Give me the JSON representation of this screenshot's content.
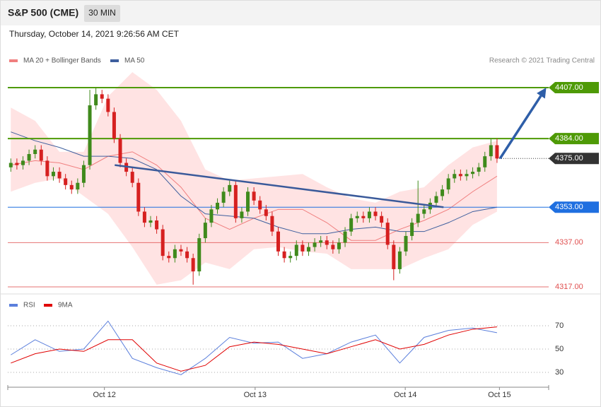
{
  "header": {
    "symbol": "S&P 500 (CME)",
    "interval": "30 MIN",
    "date": "Thursday, October 14, 2021 9:26:56 AM CET"
  },
  "chart_data": [
    {
      "type": "candlestick",
      "credit": "Research © 2021 Trading Central",
      "up_color": "#3f8a1c",
      "down_color": "#d62020",
      "xlim": [
        -0.5,
        88.5
      ],
      "ylim": [
        4315,
        4417
      ],
      "x": [
        0,
        1,
        2,
        3,
        4,
        5,
        6,
        7,
        8,
        9,
        10,
        11,
        12,
        13,
        14,
        15,
        16,
        17,
        18,
        19,
        20,
        21,
        22,
        23,
        24,
        25,
        26,
        27,
        28,
        29,
        30,
        31,
        32,
        33,
        34,
        35,
        36,
        37,
        38,
        39,
        40,
        41,
        42,
        43,
        44,
        45,
        46,
        47,
        48,
        49,
        50,
        51,
        52,
        53,
        54,
        55,
        56,
        57,
        58,
        59,
        60,
        61,
        62,
        63,
        64,
        65,
        66,
        67,
        68,
        69,
        70,
        71,
        72,
        73,
        74,
        75,
        76,
        77,
        78,
        79,
        80
      ],
      "open": [
        4371,
        4373,
        4372,
        4374,
        4377,
        4379,
        4374,
        4367,
        4369,
        4366,
        4363,
        4361,
        4364,
        4372,
        4399,
        4404,
        4402,
        4396,
        4384,
        4373,
        4369,
        4364,
        4351,
        4346,
        4347,
        4343,
        4331,
        4330,
        4334,
        4333,
        4330,
        4324,
        4339,
        4346,
        4352,
        4355,
        4360,
        4363,
        4348,
        4351,
        4360,
        4356,
        4352,
        4349,
        4342,
        4333,
        4330,
        4331,
        4336,
        4333,
        4335,
        4337,
        4338,
        4336,
        4334,
        4337,
        4342,
        4348,
        4349,
        4348,
        4351,
        4349,
        4346,
        4336,
        4325,
        4333,
        4340,
        4346,
        4350,
        4352,
        4355,
        4358,
        4361,
        4366,
        4368,
        4367,
        4368,
        4369,
        4371,
        4376,
        4381
      ],
      "high": [
        4375,
        4375,
        4376,
        4379,
        4381,
        4381,
        4376,
        4371,
        4371,
        4368,
        4365,
        4366,
        4374,
        4406,
        4407,
        4406,
        4404,
        4398,
        4386,
        4375,
        4371,
        4366,
        4353,
        4349,
        4349,
        4345,
        4333,
        4336,
        4336,
        4335,
        4332,
        4341,
        4348,
        4354,
        4357,
        4362,
        4365,
        4365,
        4353,
        4362,
        4362,
        4358,
        4354,
        4351,
        4344,
        4335,
        4333,
        4338,
        4338,
        4337,
        4339,
        4340,
        4340,
        4338,
        4339,
        4344,
        4350,
        4351,
        4351,
        4353,
        4353,
        4351,
        4348,
        4338,
        4335,
        4342,
        4348,
        4365,
        4354,
        4357,
        4360,
        4363,
        4368,
        4370,
        4370,
        4370,
        4371,
        4373,
        4378,
        4384,
        4384
      ],
      "low": [
        4369,
        4370,
        4370,
        4372,
        4375,
        4372,
        4365,
        4365,
        4364,
        4361,
        4359,
        4359,
        4362,
        4370,
        4397,
        4400,
        4394,
        4382,
        4371,
        4367,
        4362,
        4349,
        4344,
        4344,
        4341,
        4329,
        4328,
        4328,
        4331,
        4328,
        4318,
        4322,
        4337,
        4344,
        4350,
        4353,
        4358,
        4346,
        4346,
        4349,
        4354,
        4350,
        4347,
        4340,
        4331,
        4328,
        4328,
        4329,
        4331,
        4331,
        4333,
        4335,
        4334,
        4332,
        4332,
        4335,
        4340,
        4346,
        4346,
        4346,
        4347,
        4344,
        4334,
        4320,
        4323,
        4331,
        4338,
        4344,
        4348,
        4350,
        4353,
        4356,
        4359,
        4364,
        4365,
        4365,
        4366,
        4367,
        4369,
        4374,
        4373
      ],
      "close": [
        4373,
        4372,
        4374,
        4377,
        4379,
        4374,
        4367,
        4369,
        4366,
        4363,
        4361,
        4364,
        4372,
        4399,
        4404,
        4402,
        4396,
        4384,
        4373,
        4369,
        4364,
        4351,
        4346,
        4347,
        4343,
        4331,
        4330,
        4334,
        4333,
        4330,
        4324,
        4339,
        4346,
        4352,
        4355,
        4360,
        4363,
        4348,
        4351,
        4360,
        4356,
        4352,
        4349,
        4342,
        4333,
        4330,
        4331,
        4336,
        4333,
        4335,
        4337,
        4338,
        4336,
        4334,
        4337,
        4342,
        4348,
        4349,
        4348,
        4351,
        4349,
        4346,
        4336,
        4325,
        4333,
        4340,
        4346,
        4350,
        4352,
        4355,
        4358,
        4361,
        4366,
        4368,
        4367,
        4368,
        4369,
        4371,
        4376,
        4381,
        4375
      ],
      "overlay_x": [
        0,
        4,
        8,
        12,
        16,
        20,
        24,
        28,
        32,
        36,
        40,
        44,
        48,
        52,
        56,
        60,
        64,
        68,
        72,
        76,
        80
      ],
      "overlays": [
        {
          "name": "MA 20 + Bollinger Bands",
          "color": "#f07f7f",
          "band_color": "#ffd9d9",
          "values": [
            4372,
            4374,
            4373,
            4370,
            4376,
            4378,
            4372,
            4362,
            4348,
            4343,
            4348,
            4352,
            4352,
            4346,
            4338,
            4338,
            4343,
            4347,
            4352,
            4360,
            4367
          ],
          "upper": [
            4398,
            4392,
            4378,
            4378,
            4403,
            4414,
            4406,
            4392,
            4370,
            4365,
            4366,
            4367,
            4368,
            4362,
            4357,
            4355,
            4360,
            4362,
            4372,
            4380,
            4383
          ],
          "lower": [
            4360,
            4364,
            4366,
            4358,
            4350,
            4335,
            4318,
            4320,
            4328,
            4325,
            4334,
            4335,
            4333,
            4332,
            4325,
            4325,
            4325,
            4330,
            4334,
            4345,
            4351
          ]
        },
        {
          "name": "MA 50",
          "color": "#3e5f9e",
          "values": [
            4387,
            4383,
            4380,
            4376,
            4376,
            4375,
            4370,
            4358,
            4350,
            4349,
            4348,
            4344,
            4341,
            4341,
            4343,
            4344,
            4342,
            4342,
            4346,
            4351,
            4353
          ]
        }
      ],
      "levels": [
        {
          "value": 4407,
          "label": "4407.00",
          "color": "#4e9a06",
          "style": "solid",
          "boxed": true
        },
        {
          "value": 4384,
          "label": "4384.00",
          "color": "#4e9a06",
          "style": "solid",
          "boxed": true
        },
        {
          "value": 4375,
          "label": "4375.00",
          "color": "#333333",
          "style": "dotted",
          "boxed": true
        },
        {
          "value": 4353,
          "label": "4353.00",
          "color": "#1f6fe0",
          "style": "solid",
          "boxed": true
        },
        {
          "value": 4337,
          "label": "4337.00",
          "color": "#e05050",
          "style": "thin",
          "boxed": false
        },
        {
          "value": 4317,
          "label": "4317.00",
          "color": "#e05050",
          "style": "thin",
          "boxed": false
        }
      ],
      "trendline": {
        "x": [
          17.1,
          71.2
        ],
        "y": [
          4372,
          4353
        ],
        "color": "#3a5a9a"
      },
      "arrow": {
        "x": [
          80.5,
          88.1
        ],
        "y": [
          4375,
          4407
        ],
        "color": "#2e5ea8"
      }
    },
    {
      "type": "line",
      "xlim": [
        -0.5,
        88.5
      ],
      "ylim": [
        20,
        80
      ],
      "yticks": [
        30,
        50,
        70
      ],
      "xticks": [
        {
          "value": 15.4,
          "label": "Oct 12"
        },
        {
          "value": 40.2,
          "label": "Oct 13"
        },
        {
          "value": 64.9,
          "label": "Oct 14"
        },
        {
          "value": 80.4,
          "label": "Oct 15"
        }
      ],
      "x": [
        0,
        4,
        8,
        12,
        16,
        20,
        24,
        28,
        32,
        36,
        40,
        44,
        48,
        52,
        56,
        60,
        64,
        68,
        72,
        76,
        80
      ],
      "series": [
        {
          "name": "RSI",
          "color": "#5b7fdc",
          "values": [
            45,
            58,
            48,
            50,
            74,
            42,
            34,
            28,
            42,
            60,
            55,
            56,
            42,
            46,
            56,
            62,
            38,
            60,
            66,
            68,
            64
          ]
        },
        {
          "name": "9MA",
          "color": "#e00000",
          "values": [
            38,
            46,
            50,
            48,
            58,
            58,
            38,
            31,
            36,
            52,
            56,
            54,
            50,
            46,
            52,
            58,
            50,
            54,
            62,
            67,
            69
          ]
        }
      ]
    }
  ]
}
